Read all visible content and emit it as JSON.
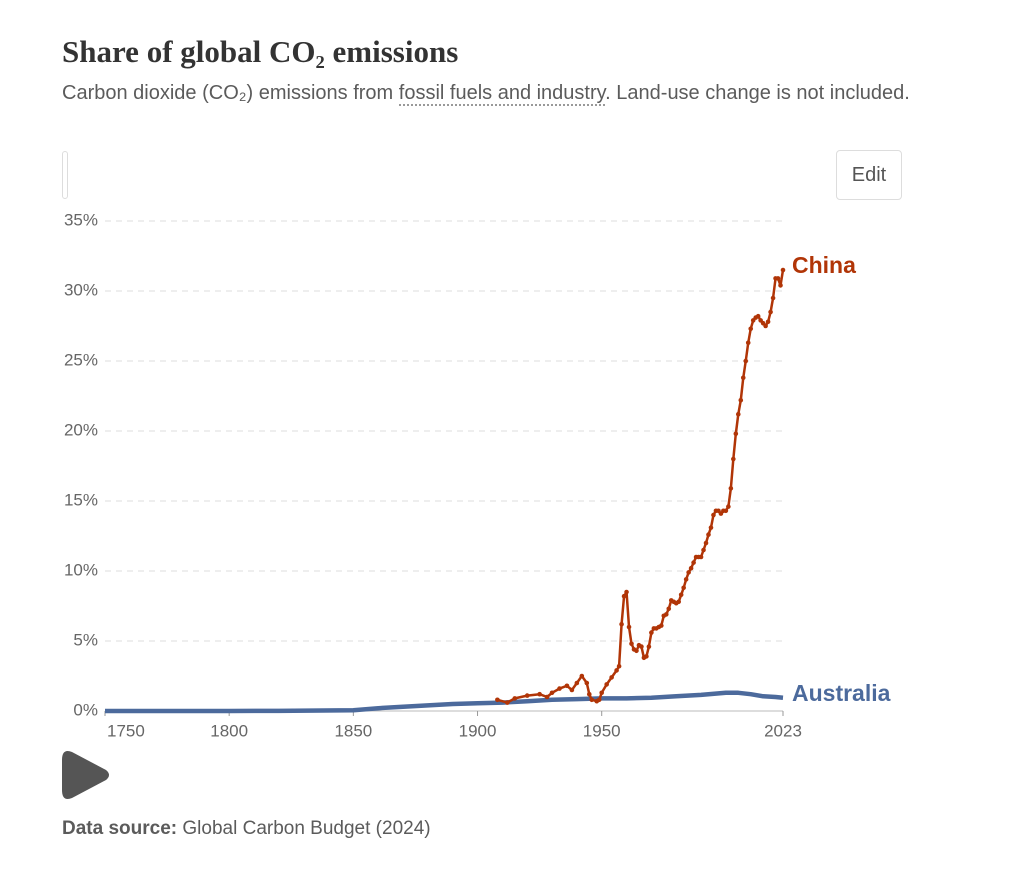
{
  "chart_data": {
    "type": "line",
    "title": "Share of global CO₂ emissions",
    "subtitle": [
      "Carbon dioxide (CO₂) emissions from ",
      "fossil fuels and industry",
      ". Land-use change is not included."
    ],
    "xlim": [
      1750,
      2023
    ],
    "xticks": [
      1750,
      1800,
      1850,
      1900,
      1950,
      2023
    ],
    "ylim": [
      0,
      35
    ],
    "yticks": [
      {
        "value": 0,
        "label": "0%"
      },
      {
        "value": 5,
        "label": "5%"
      },
      {
        "value": 10,
        "label": "10%"
      },
      {
        "value": 15,
        "label": "15%"
      },
      {
        "value": 20,
        "label": "20%"
      },
      {
        "value": 25,
        "label": "25%"
      },
      {
        "value": 30,
        "label": "30%"
      },
      {
        "value": 35,
        "label": "35%"
      }
    ],
    "grid": true,
    "series": [
      {
        "name": "China",
        "color": "#b13507",
        "markers": true,
        "x": [
          1908,
          1912,
          1915,
          1920,
          1925,
          1928,
          1930,
          1933,
          1936,
          1938,
          1940,
          1942,
          1944,
          1945,
          1946,
          1948,
          1949,
          1950,
          1952,
          1954,
          1956,
          1957,
          1958,
          1959,
          1960,
          1961,
          1962,
          1963,
          1964,
          1965,
          1966,
          1967,
          1968,
          1969,
          1970,
          1971,
          1972,
          1973,
          1974,
          1975,
          1976,
          1977,
          1978,
          1979,
          1980,
          1981,
          1982,
          1983,
          1984,
          1985,
          1986,
          1987,
          1988,
          1989,
          1990,
          1991,
          1992,
          1993,
          1994,
          1995,
          1996,
          1997,
          1998,
          1999,
          2000,
          2001,
          2002,
          2003,
          2004,
          2005,
          2006,
          2007,
          2008,
          2009,
          2010,
          2011,
          2012,
          2013,
          2014,
          2015,
          2016,
          2017,
          2018,
          2019,
          2020,
          2021,
          2022,
          2023
        ],
        "values": [
          0.8,
          0.6,
          0.9,
          1.1,
          1.2,
          1.0,
          1.3,
          1.6,
          1.8,
          1.5,
          2.0,
          2.5,
          2.0,
          1.2,
          0.8,
          0.7,
          0.8,
          1.3,
          1.9,
          2.4,
          2.9,
          3.2,
          6.2,
          8.2,
          8.5,
          6.0,
          4.8,
          4.4,
          4.3,
          4.7,
          4.6,
          3.8,
          3.9,
          4.6,
          5.6,
          5.9,
          5.9,
          6.0,
          6.1,
          6.8,
          6.9,
          7.3,
          7.9,
          7.8,
          7.7,
          7.8,
          8.3,
          8.8,
          9.4,
          9.9,
          10.2,
          10.6,
          11.0,
          11.0,
          11.0,
          11.5,
          12.0,
          12.6,
          13.1,
          14.0,
          14.3,
          14.3,
          14.1,
          14.3,
          14.3,
          14.6,
          15.9,
          18.0,
          19.8,
          21.2,
          22.2,
          23.8,
          25.0,
          26.3,
          27.3,
          27.9,
          28.1,
          28.2,
          27.9,
          27.7,
          27.5,
          27.8,
          28.5,
          29.5,
          30.9,
          30.9,
          30.4,
          31.5
        ]
      },
      {
        "name": "Australia",
        "color": "#4c6a9c",
        "markers": false,
        "x": [
          1750,
          1800,
          1820,
          1850,
          1860,
          1870,
          1880,
          1890,
          1900,
          1910,
          1920,
          1930,
          1940,
          1950,
          1960,
          1970,
          1980,
          1990,
          2000,
          2005,
          2010,
          2015,
          2020,
          2023
        ],
        "values": [
          0,
          0,
          0.01,
          0.05,
          0.2,
          0.3,
          0.4,
          0.5,
          0.55,
          0.6,
          0.7,
          0.8,
          0.85,
          0.9,
          0.9,
          0.95,
          1.05,
          1.15,
          1.3,
          1.3,
          1.2,
          1.05,
          1.0,
          0.95
        ]
      }
    ]
  },
  "controls": {
    "edit": "Edit"
  },
  "footer": {
    "source_label": "Data source:",
    "source": "Global Carbon Budget (2024)"
  }
}
